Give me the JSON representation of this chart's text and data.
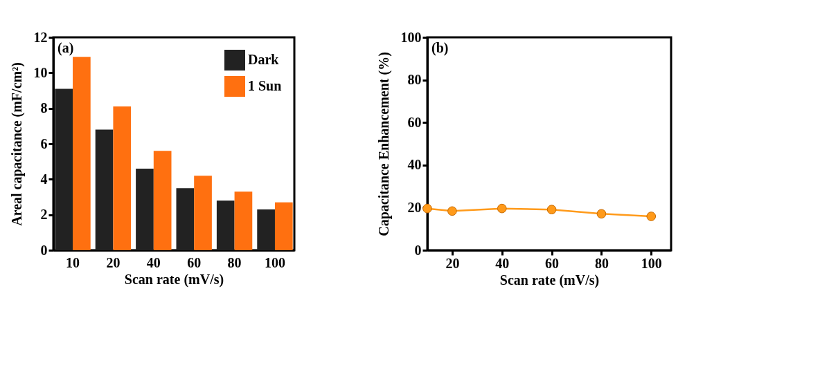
{
  "chart_data": [
    {
      "type": "bar",
      "categories": [
        "10",
        "20",
        "40",
        "60",
        "80",
        "100"
      ],
      "xlabel": "Scan rate (mV/s)",
      "ylabel": "Areal capacitance (mF/cm²)",
      "ylim": [
        0,
        12
      ],
      "yticks": [
        0,
        2,
        4,
        6,
        8,
        10,
        12
      ],
      "legend": "top right",
      "annotations": [
        "(a)"
      ],
      "series": [
        {
          "name": "Dark",
          "color": "#222222",
          "values": [
            9.1,
            6.8,
            4.6,
            3.5,
            2.8,
            2.3
          ]
        },
        {
          "name": "1 Sun",
          "color": "#ff7010",
          "values": [
            10.9,
            8.1,
            5.6,
            4.2,
            3.3,
            2.7
          ]
        }
      ]
    },
    {
      "type": "line",
      "x": [
        10,
        20,
        40,
        60,
        80,
        100
      ],
      "xlabel": "Scan rate (mV/s)",
      "ylabel": "Capacitance Enhancement (%)",
      "xlim": [
        10,
        108
      ],
      "xticks": [
        20,
        40,
        60,
        80,
        100
      ],
      "ylim": [
        0,
        100
      ],
      "yticks": [
        0,
        20,
        40,
        60,
        80,
        100
      ],
      "marker": "circle",
      "annotations": [
        "(b)"
      ],
      "series": [
        {
          "color": "#ff9a1a",
          "values": [
            19.6,
            18.4,
            19.6,
            19.1,
            17.1,
            15.9
          ]
        }
      ]
    }
  ]
}
